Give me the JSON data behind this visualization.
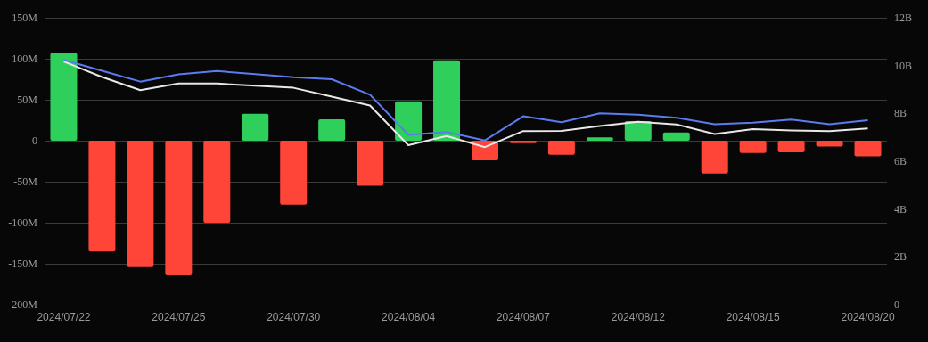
{
  "chart_data": {
    "type": "bar",
    "categories": [
      "2024/07/22",
      null,
      null,
      "2024/07/25",
      null,
      null,
      "2024/07/30",
      null,
      null,
      "2024/08/04",
      null,
      null,
      "2024/08/07",
      null,
      null,
      "2024/08/12",
      null,
      null,
      "2024/08/15",
      null,
      null,
      "2024/08/20"
    ],
    "series": [
      {
        "values": [
          107,
          -135,
          -154,
          -164,
          -100,
          33,
          -78,
          26,
          -55,
          48,
          98,
          -24,
          -3,
          -17,
          4,
          24,
          10,
          -40,
          -15,
          -14,
          -7,
          -19
        ],
        "colors": [
          "#2ecf5a",
          "#ff4538",
          "#ff4538",
          "#ff4538",
          "#ff4538",
          "#2ecf5a",
          "#ff4538",
          "#2ecf5a",
          "#ff4538",
          "#2ecf5a",
          "#2ecf5a",
          "#ff4538",
          "#ff4538",
          "#ff4538",
          "#2ecf5a",
          "#2ecf5a",
          "#2ecf5a",
          "#ff4538",
          "#ff4538",
          "#ff4538",
          "#ff4538",
          "#ff4538"
        ]
      },
      {
        "type": "line",
        "axis": "y2",
        "color": "#5b7cf0",
        "values": [
          10.24,
          9.78,
          9.33,
          9.63,
          9.77,
          9.64,
          9.51,
          9.43,
          8.78,
          7.1,
          7.22,
          6.87,
          7.88,
          7.63,
          8.0,
          7.95,
          7.82,
          7.55,
          7.61,
          7.74,
          7.55,
          7.71
        ]
      },
      {
        "type": "line",
        "axis": "y2",
        "color": "#e8e8e8",
        "values": [
          10.17,
          9.52,
          8.97,
          9.25,
          9.25,
          9.16,
          9.07,
          8.7,
          8.33,
          6.67,
          7.05,
          6.59,
          7.26,
          7.27,
          7.47,
          7.65,
          7.54,
          7.14,
          7.34,
          7.29,
          7.26,
          7.37
        ]
      }
    ],
    "ylim": [
      -200,
      150
    ],
    "yticks": [
      {
        "value": -200,
        "label": "-200M"
      },
      {
        "value": -150,
        "label": "-150M"
      },
      {
        "value": -100,
        "label": "-100M"
      },
      {
        "value": -50,
        "label": "-50M"
      },
      {
        "value": 0,
        "label": "0"
      },
      {
        "value": 50,
        "label": "50M"
      },
      {
        "value": 100,
        "label": "100M"
      },
      {
        "value": 150,
        "label": "150M"
      }
    ],
    "y2lim": [
      0,
      12
    ],
    "y2ticks": [
      0,
      {
        "value": 2,
        "label": "2B"
      },
      {
        "value": 4,
        "label": "4B"
      },
      {
        "value": 6,
        "label": "6B"
      },
      {
        "value": 8,
        "label": "8B"
      },
      {
        "value": 10,
        "label": "10B"
      },
      {
        "value": 12,
        "label": "12B"
      }
    ],
    "grid": "y",
    "marker": "none",
    "line_style": "solid"
  }
}
